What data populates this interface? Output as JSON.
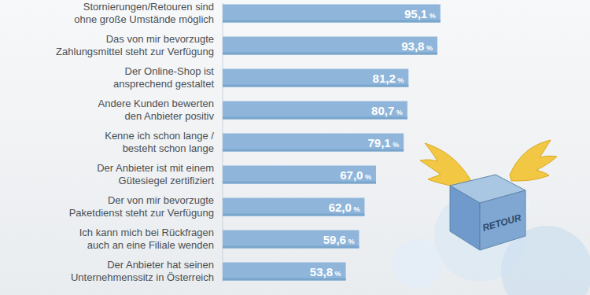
{
  "chart_data": {
    "type": "bar",
    "orientation": "horizontal",
    "categories": [
      "Stornierungen/Retouren sind\nohne große Umstände möglich",
      "Das von mir bevorzugte\nZahlungsmittel steht zur Verfügung",
      "Der Online-Shop ist\nansprechend gestaltet",
      "Andere Kunden bewerten\nden Anbieter positiv",
      "Kenne ich schon lange /\nbesteht schon lange",
      "Der Anbieter ist mit einem\nGütesiegel zertifiziert",
      "Der von mir bevorzugte\nPaketdienst steht zur Verfügung",
      "Ich kann mich bei Rückfragen\nauch an eine Filiale wenden",
      "Der Anbieter hat seinen\nUnternehmenssitz in Österreich"
    ],
    "values": [
      95.1,
      93.8,
      81.2,
      80.7,
      79.1,
      67.0,
      62.0,
      59.6,
      53.8
    ],
    "value_labels": [
      "95,1 %",
      "93,8 %",
      "81,2 %",
      "80,7 %",
      "79,1 %",
      "67,0 %",
      "62,0 %",
      "59,6 %",
      "53,8 %"
    ],
    "data_labels": true,
    "color": "#8fb6da",
    "xlim": [
      0,
      100
    ],
    "tick_labels": false,
    "grid": false,
    "annotations": [
      "RETOUR"
    ]
  }
}
